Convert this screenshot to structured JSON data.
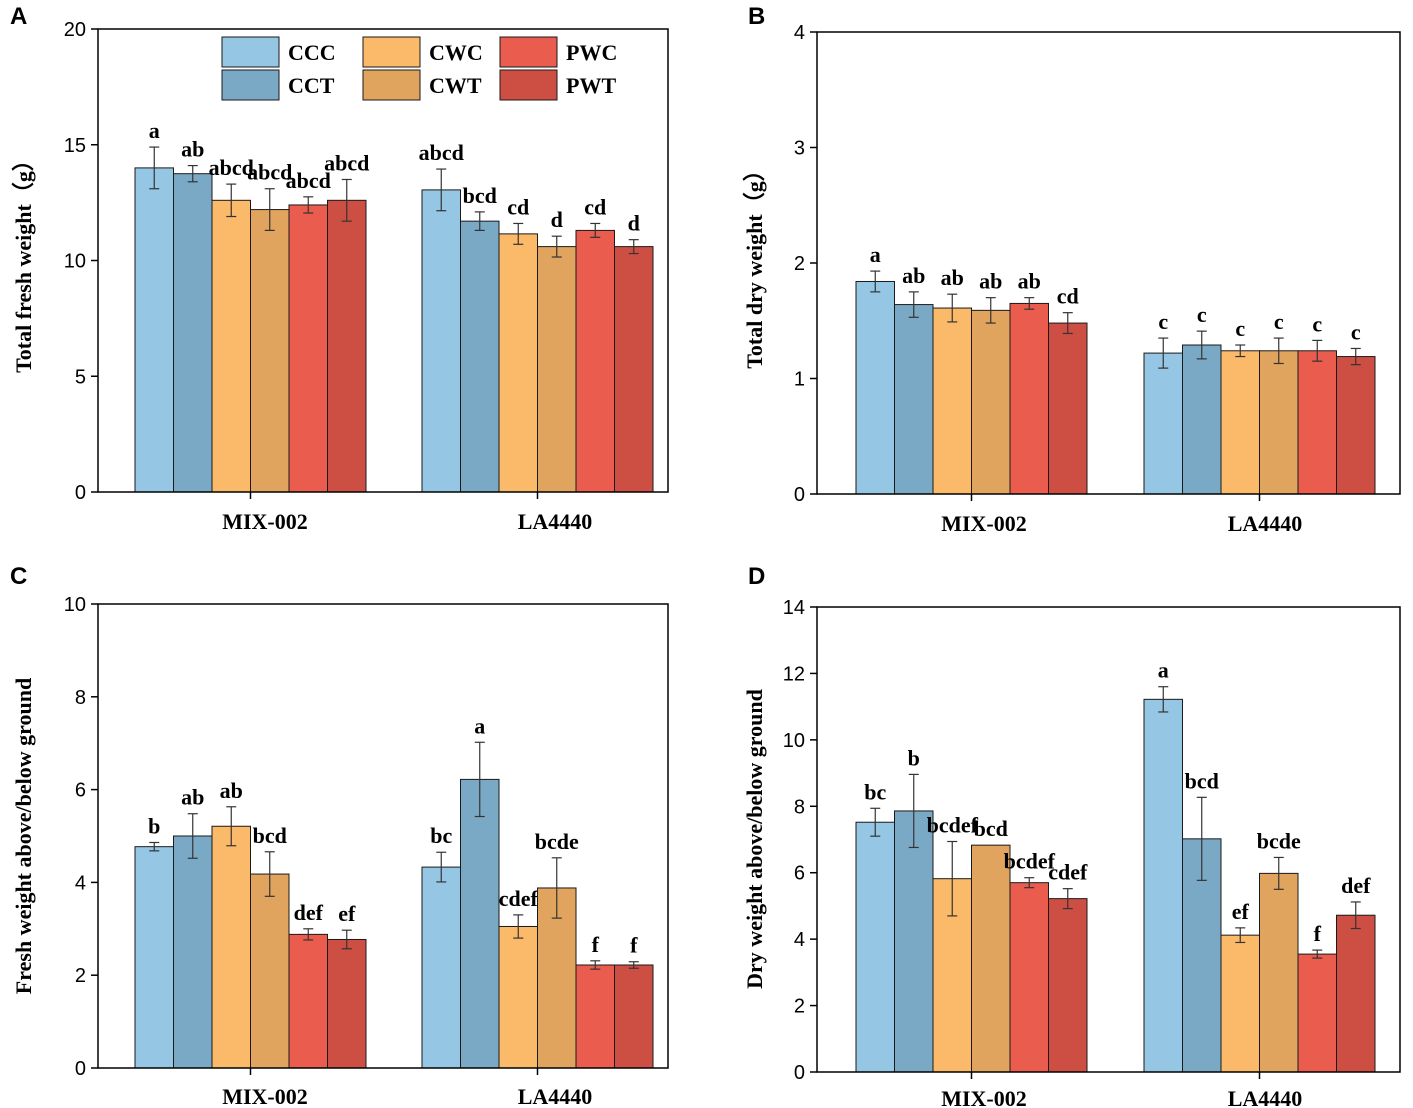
{
  "legend_series": [
    "CCC",
    "CCT",
    "CWC",
    "CWT",
    "PWC",
    "PWT"
  ],
  "series_colors": [
    "#95c6e3",
    "#7aa9c6",
    "#fbb96a",
    "#e0a45e",
    "#ea5c4e",
    "#cd4f44"
  ],
  "chart_data": [
    {
      "type": "bar",
      "panel": "A",
      "ylabel": "Total fresh weight（g）",
      "ylim": [
        0,
        20
      ],
      "yticks": [
        0,
        5,
        10,
        15,
        20
      ],
      "categories": [
        "MIX-002",
        "LA4440"
      ],
      "legend": "top-left",
      "series": [
        {
          "name": "CCC",
          "values": [
            14.0,
            13.05
          ],
          "errors": [
            0.9,
            0.9
          ],
          "labels": [
            "a",
            "abcd"
          ]
        },
        {
          "name": "CCT",
          "values": [
            13.75,
            11.7
          ],
          "errors": [
            0.35,
            0.4
          ],
          "labels": [
            "ab",
            "bcd"
          ]
        },
        {
          "name": "CWC",
          "values": [
            12.6,
            11.15
          ],
          "errors": [
            0.7,
            0.45
          ],
          "labels": [
            "abcd",
            "cd"
          ]
        },
        {
          "name": "CWT",
          "values": [
            12.2,
            10.6
          ],
          "errors": [
            0.9,
            0.45
          ],
          "labels": [
            "abcd",
            "d"
          ]
        },
        {
          "name": "PWC",
          "values": [
            12.4,
            11.3
          ],
          "errors": [
            0.35,
            0.3
          ],
          "labels": [
            "abcd",
            "cd"
          ]
        },
        {
          "name": "PWT",
          "values": [
            12.6,
            10.6
          ],
          "errors": [
            0.9,
            0.3
          ],
          "labels": [
            "abcd",
            "d"
          ]
        }
      ]
    },
    {
      "type": "bar",
      "panel": "B",
      "ylabel": "Total dry weight（g）",
      "ylim": [
        0,
        4
      ],
      "yticks": [
        0,
        1,
        2,
        3,
        4
      ],
      "categories": [
        "MIX-002",
        "LA4440"
      ],
      "series": [
        {
          "name": "CCC",
          "values": [
            1.84,
            1.22
          ],
          "errors": [
            0.09,
            0.13
          ],
          "labels": [
            "a",
            "c"
          ]
        },
        {
          "name": "CCT",
          "values": [
            1.64,
            1.29
          ],
          "errors": [
            0.11,
            0.12
          ],
          "labels": [
            "ab",
            "c"
          ]
        },
        {
          "name": "CWC",
          "values": [
            1.61,
            1.24
          ],
          "errors": [
            0.12,
            0.05
          ],
          "labels": [
            "ab",
            "c"
          ]
        },
        {
          "name": "CWT",
          "values": [
            1.59,
            1.24
          ],
          "errors": [
            0.11,
            0.11
          ],
          "labels": [
            "ab",
            "c"
          ]
        },
        {
          "name": "PWC",
          "values": [
            1.65,
            1.24
          ],
          "errors": [
            0.05,
            0.09
          ],
          "labels": [
            "ab",
            "c"
          ]
        },
        {
          "name": "PWT",
          "values": [
            1.48,
            1.19
          ],
          "errors": [
            0.09,
            0.07
          ],
          "labels": [
            "cd",
            "c"
          ]
        }
      ]
    },
    {
      "type": "bar",
      "panel": "C",
      "ylabel": "Fresh weight above/below ground",
      "ylim": [
        0,
        10
      ],
      "yticks": [
        0,
        2,
        4,
        6,
        8,
        10
      ],
      "categories": [
        "MIX-002",
        "LA4440"
      ],
      "series": [
        {
          "name": "CCC",
          "values": [
            4.77,
            4.33
          ],
          "errors": [
            0.09,
            0.32
          ],
          "labels": [
            "b",
            "bc"
          ]
        },
        {
          "name": "CCT",
          "values": [
            5.0,
            6.22
          ],
          "errors": [
            0.48,
            0.8
          ],
          "labels": [
            "ab",
            "a"
          ]
        },
        {
          "name": "CWC",
          "values": [
            5.21,
            3.05
          ],
          "errors": [
            0.42,
            0.25
          ],
          "labels": [
            "ab",
            "cdef"
          ]
        },
        {
          "name": "CWT",
          "values": [
            4.18,
            3.88
          ],
          "errors": [
            0.48,
            0.65
          ],
          "labels": [
            "bcd",
            "bcde"
          ]
        },
        {
          "name": "PWC",
          "values": [
            2.88,
            2.22
          ],
          "errors": [
            0.12,
            0.09
          ],
          "labels": [
            "def",
            "f"
          ]
        },
        {
          "name": "PWT",
          "values": [
            2.77,
            2.22
          ],
          "errors": [
            0.2,
            0.07
          ],
          "labels": [
            "ef",
            "f"
          ]
        }
      ]
    },
    {
      "type": "bar",
      "panel": "D",
      "ylabel": "Dry weight above/below ground",
      "ylim": [
        0,
        14
      ],
      "yticks": [
        0,
        2,
        4,
        6,
        8,
        10,
        12,
        14
      ],
      "categories": [
        "MIX-002",
        "LA4440"
      ],
      "series": [
        {
          "name": "CCC",
          "values": [
            7.52,
            11.22
          ],
          "errors": [
            0.42,
            0.38
          ],
          "labels": [
            "bc",
            "a"
          ]
        },
        {
          "name": "CCT",
          "values": [
            7.86,
            7.02
          ],
          "errors": [
            1.1,
            1.25
          ],
          "labels": [
            "b",
            "bcd"
          ]
        },
        {
          "name": "CWC",
          "values": [
            5.82,
            4.12
          ],
          "errors": [
            1.12,
            0.22
          ],
          "labels": [
            "bcdef",
            "ef"
          ]
        },
        {
          "name": "CWT",
          "values": [
            6.83,
            5.98
          ],
          "errors": [
            0.0,
            0.48
          ],
          "labels": [
            "bcd",
            "bcde"
          ]
        },
        {
          "name": "PWC",
          "values": [
            5.7,
            3.55
          ],
          "errors": [
            0.15,
            0.12
          ],
          "labels": [
            "bcdef",
            "f"
          ]
        },
        {
          "name": "PWT",
          "values": [
            5.22,
            4.72
          ],
          "errors": [
            0.3,
            0.4
          ],
          "labels": [
            "cdef",
            "def"
          ]
        }
      ]
    }
  ]
}
